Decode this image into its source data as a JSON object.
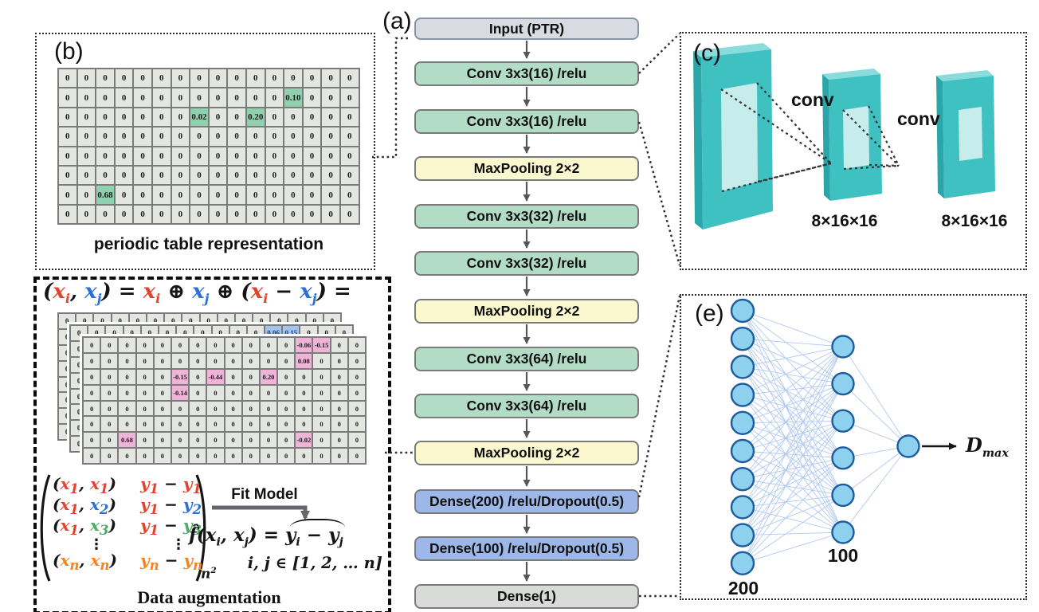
{
  "colors": {
    "green_cell": "#8fd0ae",
    "blue_cell": "#a3c4ec",
    "blue_cell_text": "#1d3f77",
    "pink_cell": "#f0b4d8",
    "flow_arrow": "#575757",
    "slab_front": "#3fc0c1",
    "slab_top": "#8adcdc",
    "slab_side": "#2ba6a8",
    "slab_inner": "#c6ecec",
    "node_fill": "#8dd1ee",
    "node_stroke": "#1d5c9e",
    "net_line": "#b0c9f2",
    "red": "#e0442f",
    "blue": "#2c6fd6",
    "green": "#4faa63",
    "orange": "#f5831f"
  },
  "panels": {
    "a": {
      "label": "(a)"
    },
    "b": {
      "label": "(b)",
      "caption": "periodic table representation",
      "grid": {
        "cols": 16,
        "rows": 8,
        "fill": "0",
        "highlights": [
          {
            "r": 1,
            "c": 12,
            "v": "0.10"
          },
          {
            "r": 2,
            "c": 7,
            "v": "0.02"
          },
          {
            "r": 2,
            "c": 10,
            "v": "0.20"
          },
          {
            "r": 6,
            "c": 2,
            "v": "0.68"
          }
        ]
      }
    },
    "c": {
      "label": "(c)",
      "conv1": "conv",
      "conv2": "conv",
      "size1": "8×16×16",
      "size2": "8×16×16"
    },
    "e": {
      "label": "(e)",
      "left_nodes": 10,
      "mid_nodes": 6,
      "out_nodes": 1,
      "left_label": "200",
      "mid_label": "100",
      "out_label_base": "D",
      "out_label_sub": "max"
    },
    "aug": {
      "formula_top": [
        {
          "t": "("
        },
        {
          "t": "x",
          "sub": "i",
          "c": "red"
        },
        {
          "t": ", "
        },
        {
          "t": "x",
          "sub": "j",
          "c": "blue"
        },
        {
          "t": ") = "
        },
        {
          "t": "x",
          "sub": "i",
          "c": "red"
        },
        {
          "t": " ⊕ "
        },
        {
          "t": "x",
          "sub": "j",
          "c": "blue"
        },
        {
          "t": " ⊕ ("
        },
        {
          "t": "x",
          "sub": "i",
          "c": "red"
        },
        {
          "t": " − "
        },
        {
          "t": "x",
          "sub": "j",
          "c": "blue"
        },
        {
          "t": ") ="
        }
      ],
      "stack": {
        "cols": 16,
        "rows": 8,
        "fill": "0",
        "back_highlights": [],
        "middle_highlights": [
          {
            "r": 0,
            "c": 11,
            "v": "0.06"
          },
          {
            "r": 0,
            "c": 12,
            "v": "0.15"
          }
        ],
        "front_highlights": [
          {
            "r": 0,
            "c": 12,
            "v": "-0.06"
          },
          {
            "r": 0,
            "c": 13,
            "v": "-0.15"
          },
          {
            "r": 1,
            "c": 12,
            "v": "0.08"
          },
          {
            "r": 2,
            "c": 5,
            "v": "-0.15"
          },
          {
            "r": 2,
            "c": 7,
            "v": "-0.44"
          },
          {
            "r": 2,
            "c": 10,
            "v": "0.20"
          },
          {
            "r": 3,
            "c": 5,
            "v": "-0.14"
          },
          {
            "r": 6,
            "c": 2,
            "v": "0.68"
          },
          {
            "r": 6,
            "c": 12,
            "v": "-0.02"
          }
        ]
      },
      "matrix": {
        "rows": [
          {
            "pair": [
              {
                "t": "x",
                "sub": "1",
                "c": "red"
              },
              {
                "t": "x",
                "sub": "1",
                "c": "red"
              }
            ],
            "diff": [
              {
                "t": "y",
                "sub": "1",
                "c": "red"
              },
              {
                "t": "y",
                "sub": "1",
                "c": "red"
              }
            ]
          },
          {
            "pair": [
              {
                "t": "x",
                "sub": "1",
                "c": "red"
              },
              {
                "t": "x",
                "sub": "2",
                "c": "blue"
              }
            ],
            "diff": [
              {
                "t": "y",
                "sub": "1",
                "c": "red"
              },
              {
                "t": "y",
                "sub": "2",
                "c": "blue"
              }
            ]
          },
          {
            "pair": [
              {
                "t": "x",
                "sub": "1",
                "c": "red"
              },
              {
                "t": "x",
                "sub": "3",
                "c": "green"
              }
            ],
            "diff": [
              {
                "t": "y",
                "sub": "1",
                "c": "red"
              },
              {
                "t": "y",
                "sub": "3",
                "c": "green"
              }
            ]
          },
          {
            "dots": true
          },
          {
            "pair": [
              {
                "t": "x",
                "sub": "n",
                "c": "orange"
              },
              {
                "t": "x",
                "sub": "n",
                "c": "orange"
              }
            ],
            "diff": [
              {
                "t": "y",
                "sub": "n",
                "c": "orange"
              },
              {
                "t": "y",
                "sub": "n",
                "c": "orange"
              }
            ]
          }
        ],
        "outer_sub_base": "n",
        "outer_sub_sup": "2"
      },
      "fit_label": "Fit Model",
      "fhat_pre": [
        {
          "t": "f̂("
        },
        {
          "t": "x",
          "sub": "i"
        },
        {
          "t": ", "
        },
        {
          "t": "x",
          "sub": "j"
        },
        {
          "t": ") = "
        }
      ],
      "fhat_hat": [
        {
          "t": "y",
          "sub": "i"
        },
        {
          "t": " − "
        },
        {
          "t": "y",
          "sub": "j"
        }
      ],
      "ij_formula": "i, j ∈ [1, 2, … n]",
      "caption": "Data augmentation"
    }
  },
  "flowchart": {
    "boxes": [
      {
        "label": "Input (PTR)",
        "type": "gray"
      },
      {
        "label": "Conv 3x3(16) /relu",
        "type": "green"
      },
      {
        "label": "Conv 3x3(16) /relu",
        "type": "green"
      },
      {
        "label": "MaxPooling 2×2",
        "type": "yellow"
      },
      {
        "label": "Conv 3x3(32) /relu",
        "type": "green"
      },
      {
        "label": "Conv 3x3(32) /relu",
        "type": "green"
      },
      {
        "label": "MaxPooling 2×2",
        "type": "yellow"
      },
      {
        "label": "Conv 3x3(64) /relu",
        "type": "green"
      },
      {
        "label": "Conv 3x3(64) /relu",
        "type": "green"
      },
      {
        "label": "MaxPooling 2×2",
        "type": "yellow"
      },
      {
        "label": "Dense(200) /relu/Dropout(0.5)",
        "type": "blue"
      },
      {
        "label": "Dense(100) /relu/Dropout(0.5)",
        "type": "blue"
      },
      {
        "label": "Dense(1)",
        "type": "gray2"
      }
    ]
  }
}
